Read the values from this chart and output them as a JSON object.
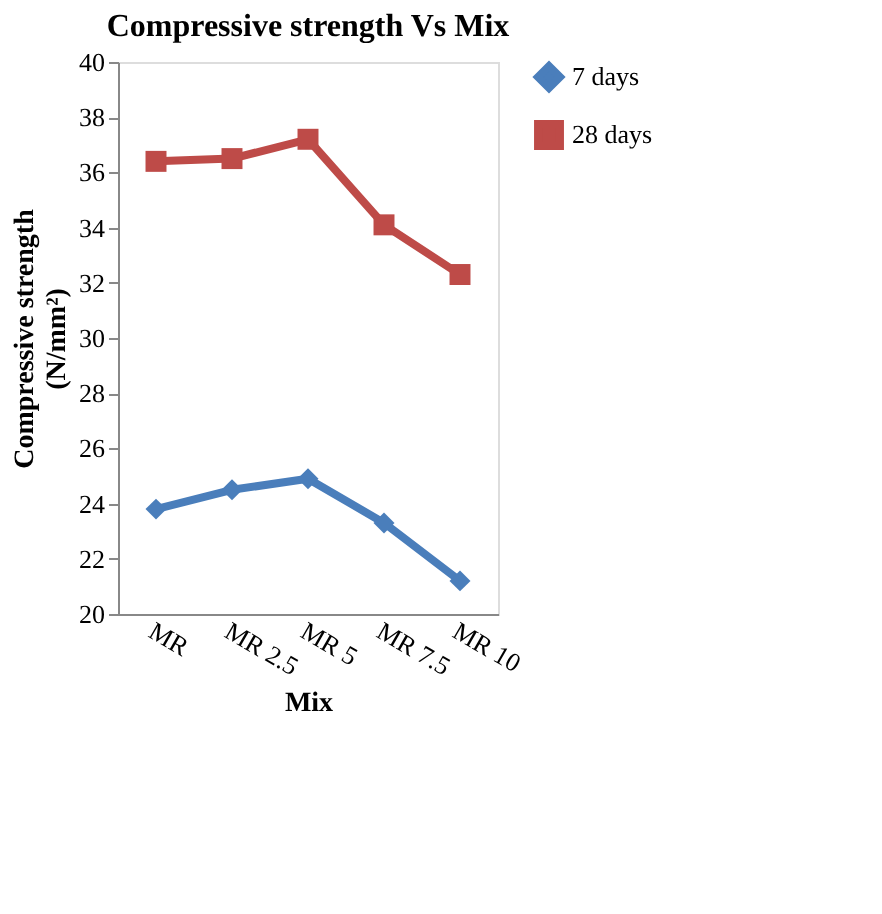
{
  "chart_data": {
    "type": "line",
    "title": "Compressive strength Vs Mix",
    "xlabel": "Mix",
    "ylabel": "Compressive strength\n(N/mm²)",
    "categories": [
      "MR",
      "MR 2.5",
      "MR 5",
      "MR 7.5",
      "MR 10"
    ],
    "series": [
      {
        "name": "7 days",
        "color": "#4a7ebb",
        "marker": "diamond",
        "values": [
          23.8,
          24.5,
          24.9,
          23.3,
          21.2
        ]
      },
      {
        "name": "28 days",
        "color": "#be4b48",
        "marker": "square",
        "values": [
          36.4,
          36.5,
          37.2,
          34.1,
          32.3
        ]
      }
    ],
    "ylim": [
      20,
      40
    ],
    "yticks": [
      20,
      22,
      24,
      26,
      28,
      30,
      32,
      34,
      36,
      38,
      40
    ],
    "grid": false,
    "legend": "right",
    "line_style": "solid"
  }
}
